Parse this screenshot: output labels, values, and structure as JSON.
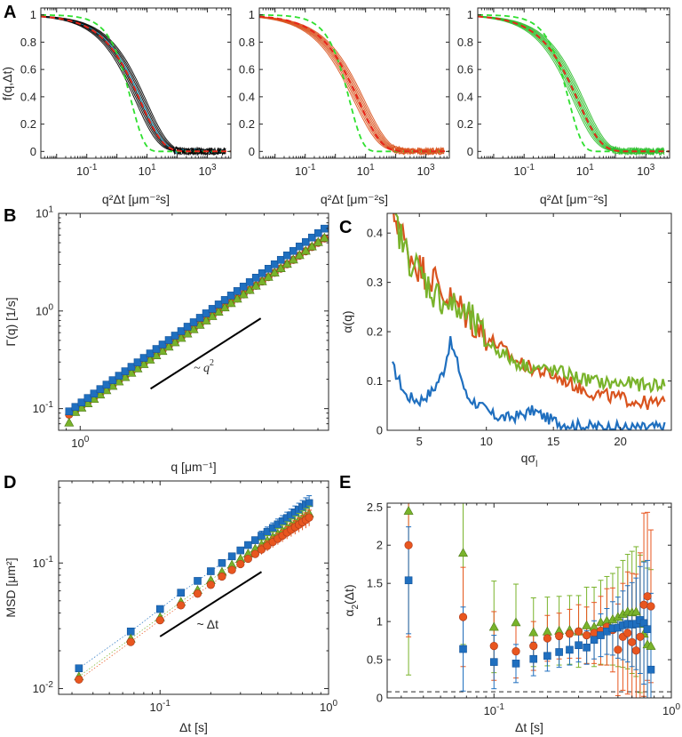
{
  "chart_data": [
    {
      "panel": "A",
      "type": "line",
      "subplots": [
        {
          "xlabel": "q²Δt [μm⁻²s]",
          "ylabel": "f(q,Δt)",
          "xscale": "log",
          "xlim": [
            0.003,
            6000
          ],
          "ylim": [
            -0.05,
            1.05
          ],
          "xticks": [
            {
              "v": 0.1,
              "base": "10",
              "exp": "-1"
            },
            {
              "v": 10,
              "base": "10",
              "exp": "1"
            },
            {
              "v": 1000,
              "base": "10",
              "exp": "3"
            }
          ],
          "yticks": [
            "0",
            "0.2",
            "0.4",
            "0.6",
            "0.8",
            "1"
          ],
          "data_color": "#000000",
          "model": {
            "name": "fit",
            "tau": 6,
            "beta": 0.58,
            "color": "#e8251a"
          },
          "reference": {
            "name": "exponential",
            "tau": 3,
            "beta": 1.0,
            "color": "#2fe02f"
          }
        },
        {
          "xlabel": "q²Δt [μm⁻²s]",
          "xscale": "log",
          "xlim": [
            0.003,
            6000
          ],
          "ylim": [
            -0.05,
            1.05
          ],
          "xticks": [
            {
              "v": 0.1,
              "base": "10",
              "exp": "-1"
            },
            {
              "v": 10,
              "base": "10",
              "exp": "1"
            },
            {
              "v": 1000,
              "base": "10",
              "exp": "3"
            }
          ],
          "yticks": [
            "0",
            "0.2",
            "0.4",
            "0.6",
            "0.8",
            "1"
          ],
          "data_color": "#d9531e",
          "model": {
            "name": "fit",
            "tau": 6,
            "beta": 0.58,
            "color": "#e8251a"
          },
          "reference": {
            "name": "exponential",
            "tau": 3,
            "beta": 1.0,
            "color": "#2fe02f"
          }
        },
        {
          "xlabel": "q²Δt [μm⁻²s]",
          "xscale": "log",
          "xlim": [
            0.003,
            6000
          ],
          "ylim": [
            -0.05,
            1.05
          ],
          "xticks": [
            {
              "v": 0.1,
              "base": "10",
              "exp": "-1"
            },
            {
              "v": 10,
              "base": "10",
              "exp": "1"
            },
            {
              "v": 1000,
              "base": "10",
              "exp": "3"
            }
          ],
          "yticks": [
            "0",
            "0.2",
            "0.4",
            "0.6",
            "0.8",
            "1"
          ],
          "data_color": "#2fbf2f",
          "model": {
            "name": "fit",
            "tau": 6,
            "beta": 0.58,
            "color": "#e8251a"
          },
          "reference": {
            "name": "exponential",
            "tau": 3,
            "beta": 1.0,
            "color": "#2fe02f"
          }
        }
      ]
    },
    {
      "panel": "B",
      "type": "scatter",
      "xlabel": "q [μm⁻¹]",
      "ylabel": "Γ(q) [1/s]",
      "xscale": "log",
      "yscale": "log",
      "xlim": [
        0.85,
        6.5
      ],
      "ylim": [
        0.06,
        10
      ],
      "xticks": [
        {
          "v": 1,
          "base": "10",
          "exp": "0"
        }
      ],
      "yticks": [
        {
          "v": 0.1,
          "base": "10",
          "exp": "-1"
        },
        {
          "v": 1,
          "base": "10",
          "exp": "0"
        },
        {
          "v": 10,
          "base": "10",
          "exp": "1"
        }
      ],
      "series": [
        {
          "name": "blue",
          "color": "#1f6fbf",
          "marker": "square",
          "prefactor": 0.113,
          "exponent": 2.24
        },
        {
          "name": "red",
          "color": "#e8561f",
          "marker": "circle",
          "prefactor": 0.104,
          "exponent": 2.16
        },
        {
          "name": "green",
          "color": "#79b32b",
          "marker": "triangle",
          "prefactor": 0.1,
          "exponent": 2.19
        }
      ],
      "guide": {
        "x": [
          1.7,
          3.9
        ],
        "y": [
          0.16,
          0.84
        ]
      },
      "annotation": {
        "text": "~ q",
        "sup": "2",
        "x": 2.35,
        "y": 0.24
      }
    },
    {
      "panel": "C",
      "type": "line",
      "xlabel": "qσ",
      "xlabel_sub": "l",
      "ylabel": "α(q)",
      "xlim": [
        2.6,
        23.8
      ],
      "ylim": [
        0,
        0.44
      ],
      "xticks": [
        "5",
        "10",
        "15",
        "20"
      ],
      "yticks": [
        "0",
        "0.1",
        "0.2",
        "0.3",
        "0.4"
      ],
      "series": [
        {
          "name": "blue",
          "color": "#1f6fbf",
          "x": [
            3,
            4,
            5,
            6,
            6.8,
            7.3,
            7.8,
            8.5,
            9.5,
            10.5,
            11.5,
            12.5,
            13.5,
            14.5,
            15.5,
            16.5,
            17.5,
            18.5,
            19.5,
            20.5,
            21.5,
            22.5,
            23.3
          ],
          "values": [
            0.13,
            0.07,
            0.06,
            0.08,
            0.12,
            0.18,
            0.14,
            0.07,
            0.05,
            0.03,
            0.025,
            0.03,
            0.04,
            0.025,
            0.015,
            0.01,
            0.008,
            0.007,
            0.006,
            0.005,
            0.005,
            0.006,
            0.006
          ]
        },
        {
          "name": "red",
          "color": "#d9531e",
          "x": [
            3,
            3.5,
            4,
            5,
            6,
            7,
            8,
            9,
            10,
            11,
            12,
            13,
            14,
            15,
            16,
            17,
            18,
            19,
            20,
            21,
            22,
            23.3
          ],
          "values": [
            0.44,
            0.42,
            0.37,
            0.33,
            0.31,
            0.27,
            0.25,
            0.22,
            0.19,
            0.17,
            0.145,
            0.13,
            0.12,
            0.11,
            0.1,
            0.085,
            0.075,
            0.07,
            0.065,
            0.06,
            0.055,
            0.055
          ]
        },
        {
          "name": "green",
          "color": "#79b32b",
          "x": [
            3,
            3.5,
            4,
            5,
            6,
            7,
            8,
            9,
            10,
            11,
            12,
            13,
            14,
            15,
            16,
            17,
            18,
            19,
            20,
            21,
            22,
            23.3
          ],
          "values": [
            0.44,
            0.4,
            0.36,
            0.32,
            0.28,
            0.26,
            0.24,
            0.22,
            0.18,
            0.16,
            0.14,
            0.13,
            0.125,
            0.12,
            0.115,
            0.105,
            0.1,
            0.095,
            0.095,
            0.095,
            0.09,
            0.095
          ]
        }
      ]
    },
    {
      "panel": "D",
      "type": "scatter",
      "xlabel": "Δt [s]",
      "ylabel": "MSD [μm²]",
      "xscale": "log",
      "yscale": "log",
      "xlim": [
        0.025,
        1
      ],
      "ylim": [
        0.009,
        0.45
      ],
      "xticks": [
        {
          "v": 0.1,
          "base": "10",
          "exp": "-1"
        },
        {
          "v": 1,
          "base": "10",
          "exp": "0"
        }
      ],
      "yticks": [
        {
          "v": 0.01,
          "base": "10",
          "exp": "-2"
        },
        {
          "v": 0.1,
          "base": "10",
          "exp": "-1"
        }
      ],
      "x": [
        0.033,
        0.067,
        0.1,
        0.133,
        0.167,
        0.2,
        0.233,
        0.267,
        0.3,
        0.333,
        0.367,
        0.4,
        0.433,
        0.467,
        0.5,
        0.533,
        0.567,
        0.6,
        0.633,
        0.667,
        0.7,
        0.733,
        0.767
      ],
      "series": [
        {
          "name": "blue",
          "color": "#1f6fbf",
          "marker": "square",
          "values": [
            0.0145,
            0.0285,
            0.043,
            0.058,
            0.072,
            0.086,
            0.1,
            0.113,
            0.126,
            0.139,
            0.152,
            0.165,
            0.177,
            0.19,
            0.203,
            0.215,
            0.228,
            0.24,
            0.253,
            0.265,
            0.277,
            0.29,
            0.3
          ]
        },
        {
          "name": "green",
          "color": "#79b32b",
          "marker": "triangle",
          "values": [
            0.0125,
            0.025,
            0.037,
            0.049,
            0.061,
            0.073,
            0.085,
            0.097,
            0.108,
            0.119,
            0.13,
            0.14,
            0.151,
            0.161,
            0.171,
            0.181,
            0.191,
            0.2,
            0.21,
            0.22,
            0.229,
            0.238,
            0.248
          ]
        },
        {
          "name": "red",
          "color": "#e8561f",
          "marker": "circle",
          "values": [
            0.0118,
            0.0235,
            0.035,
            0.046,
            0.057,
            0.067,
            0.078,
            0.088,
            0.098,
            0.108,
            0.118,
            0.128,
            0.137,
            0.147,
            0.156,
            0.165,
            0.175,
            0.184,
            0.193,
            0.202,
            0.211,
            0.22,
            0.23
          ]
        }
      ],
      "guide": {
        "x": [
          0.1,
          0.4
        ],
        "y": [
          0.026,
          0.085
        ]
      },
      "annotation": {
        "text": "~ Δt",
        "x": 0.165,
        "y": 0.03
      }
    },
    {
      "panel": "E",
      "type": "scatter",
      "xlabel": "Δt [s]",
      "ylabel": "α",
      "ylabel_sub": "2",
      "ylabel_tail": "(Δt)",
      "xscale": "log",
      "xlim": [
        0.025,
        1
      ],
      "ylim": [
        0,
        2.55
      ],
      "xticks": [
        {
          "v": 0.1,
          "base": "10",
          "exp": "-1"
        },
        {
          "v": 1,
          "base": "10",
          "exp": "0"
        }
      ],
      "yticks": [
        "0",
        "0.5",
        "1",
        "1.5",
        "2",
        "2.5"
      ],
      "reference_line": {
        "y": 0.08,
        "style": "dashed",
        "color": "#262626"
      },
      "x": [
        0.033,
        0.067,
        0.1,
        0.133,
        0.167,
        0.2,
        0.233,
        0.267,
        0.3,
        0.333,
        0.367,
        0.4,
        0.433,
        0.467,
        0.5,
        0.533,
        0.567,
        0.6,
        0.633,
        0.667,
        0.7,
        0.733,
        0.767
      ],
      "series": [
        {
          "name": "blue",
          "color": "#1f6fbf",
          "marker": "square",
          "values": [
            1.54,
            0.64,
            0.47,
            0.45,
            0.51,
            0.55,
            0.6,
            0.63,
            0.69,
            0.66,
            0.76,
            0.82,
            0.87,
            0.91,
            0.92,
            0.95,
            0.97,
            0.96,
            0.97,
            1.02,
            0.98,
            0.9,
            0.37
          ],
          "errors": [
            0.7,
            0.55,
            0.35,
            0.25,
            0.22,
            0.2,
            0.2,
            0.2,
            0.22,
            0.22,
            0.25,
            0.28,
            0.3,
            0.35,
            0.4,
            0.45,
            0.5,
            0.55,
            0.6,
            0.7,
            0.8,
            0.9,
            1.0
          ]
        },
        {
          "name": "red",
          "color": "#e8561f",
          "marker": "circle",
          "values": [
            2.0,
            1.06,
            0.68,
            0.61,
            0.68,
            0.78,
            0.81,
            0.84,
            0.87,
            0.82,
            0.85,
            0.88,
            0.93,
            0.89,
            0.63,
            0.8,
            0.85,
            0.73,
            0.62,
            0.8,
            1.22,
            1.33,
            1.2
          ],
          "errors": [
            1.2,
            0.65,
            0.45,
            0.35,
            0.32,
            0.3,
            0.3,
            0.32,
            0.35,
            0.37,
            0.4,
            0.45,
            0.5,
            0.55,
            0.6,
            0.7,
            0.8,
            0.9,
            1.0,
            1.1,
            1.2,
            1.1,
            1.0
          ]
        },
        {
          "name": "green",
          "color": "#79b32b",
          "marker": "triangle",
          "values": [
            2.45,
            1.9,
            0.93,
            0.99,
            0.86,
            0.87,
            0.88,
            0.89,
            0.87,
            0.95,
            0.93,
            0.99,
            1.01,
            1.03,
            1.06,
            1.1,
            1.13,
            1.12,
            1.13,
            0.97,
            0.84,
            0.7,
            0.68
          ],
          "errors": [
            2.15,
            1.2,
            0.6,
            0.5,
            0.45,
            0.45,
            0.45,
            0.45,
            0.47,
            0.5,
            0.52,
            0.55,
            0.58,
            0.6,
            0.65,
            0.7,
            0.75,
            0.8,
            0.85,
            0.9,
            0.95,
            1.0,
            1.0
          ]
        }
      ]
    }
  ],
  "panel_labels": [
    "A",
    "B",
    "C",
    "D",
    "E"
  ]
}
